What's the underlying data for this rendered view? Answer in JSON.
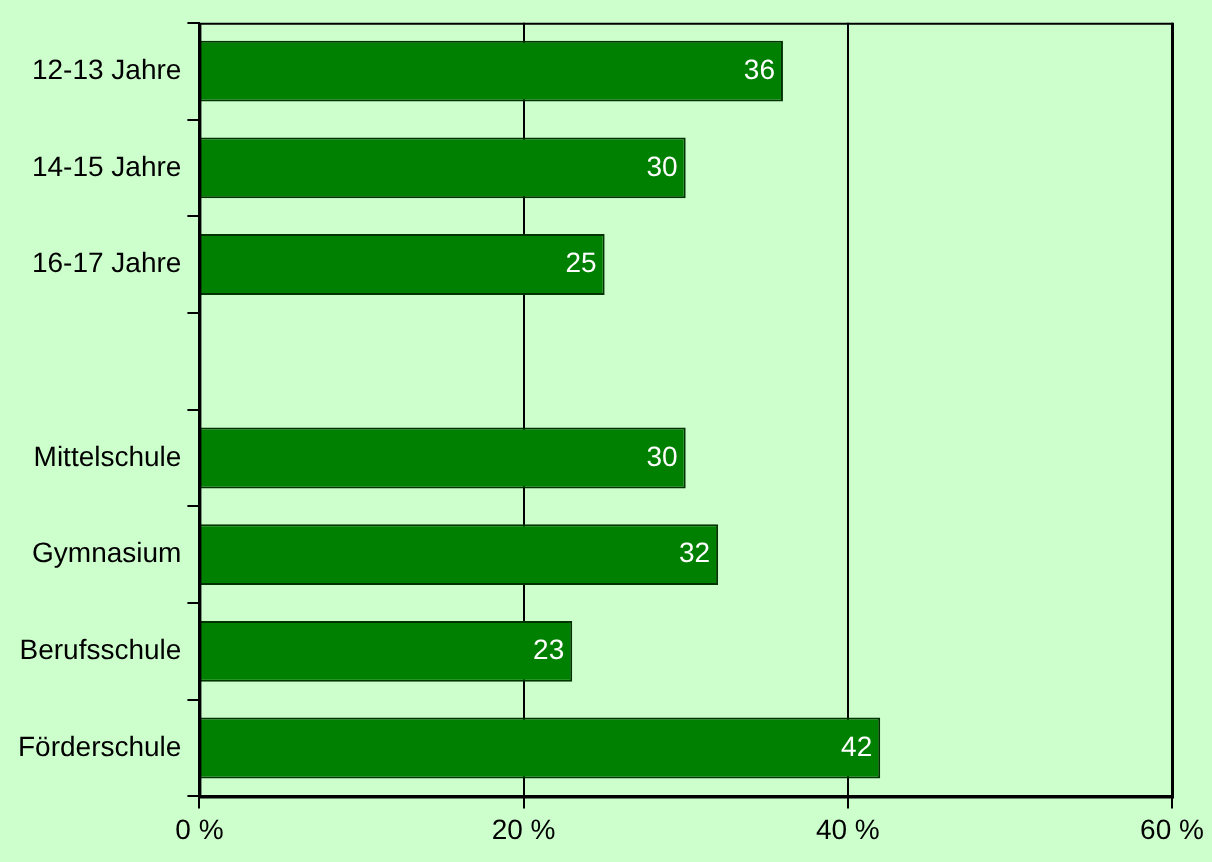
{
  "chart_data": {
    "type": "bar",
    "orientation": "horizontal",
    "categories": [
      "12-13 Jahre",
      "14-15 Jahre",
      "16-17 Jahre",
      null,
      "Mittelschule",
      "Gymnasium",
      "Berufsschule",
      "Förderschule"
    ],
    "values": [
      36,
      30,
      25,
      null,
      30,
      32,
      23,
      42
    ],
    "color": "#008000",
    "xlim": [
      0,
      60
    ],
    "xticks": [
      {
        "value": 0,
        "label": "0 %"
      },
      {
        "value": 20,
        "label": "20 %"
      },
      {
        "value": 40,
        "label": "40 %"
      },
      {
        "value": 60,
        "label": "60 %"
      }
    ],
    "grid": "x",
    "legend": false,
    "data_labels": true
  }
}
